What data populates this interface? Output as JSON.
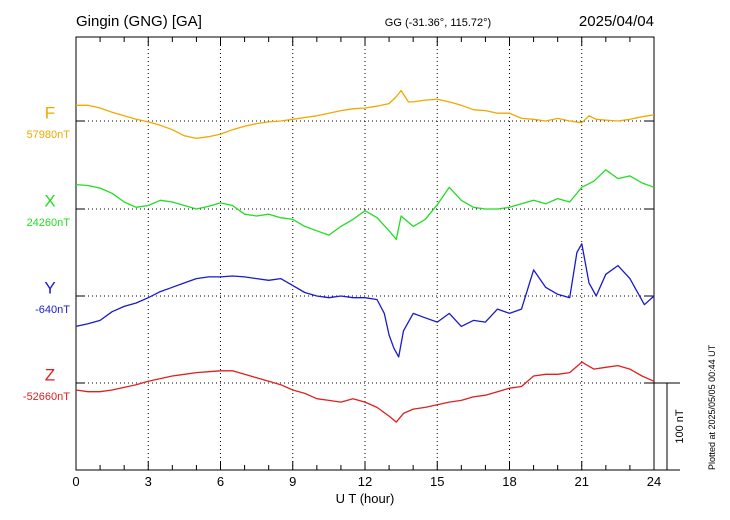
{
  "header": {
    "station": "Gingin (GNG)  [GA]",
    "coords": "GG (-31.36°, 115.72°)",
    "date": "2025/04/04"
  },
  "footer": {
    "plotted": "Plotted at 2025/05/05 00:44 UT"
  },
  "chart_data": {
    "type": "line",
    "xlabel": "U T (hour)",
    "x_ticks": [
      "0",
      "3",
      "6",
      "9",
      "12",
      "15",
      "18",
      "21",
      "24"
    ],
    "xlim": [
      0,
      24
    ],
    "scale_bar_label": "100 nT",
    "scale_bar_nT": 100,
    "grid": true,
    "series": [
      {
        "name": "F",
        "baseline_label": "57980nT",
        "baseline_nT": 57980,
        "color": "#f0a800",
        "x": [
          0,
          0.5,
          1,
          1.5,
          2,
          2.5,
          3,
          3.5,
          4,
          4.5,
          5,
          5.5,
          6,
          6.5,
          7,
          7.5,
          8,
          8.5,
          9,
          9.5,
          10,
          10.5,
          11,
          11.5,
          12,
          12.5,
          13,
          13.3,
          13.5,
          13.8,
          14,
          14.5,
          15,
          15.5,
          16,
          16.5,
          17,
          17.5,
          18,
          18.5,
          19,
          19.5,
          20,
          20.5,
          21,
          21.3,
          21.6,
          22,
          22.5,
          23,
          23.5,
          24
        ],
        "nT": [
          18,
          18,
          15,
          10,
          6,
          2,
          -1,
          -5,
          -10,
          -17,
          -20,
          -18,
          -15,
          -10,
          -6,
          -3,
          -1,
          0,
          2,
          4,
          6,
          9,
          12,
          14,
          15,
          17,
          20,
          28,
          35,
          22,
          22,
          24,
          25,
          22,
          18,
          13,
          12,
          9,
          9,
          3,
          2,
          0,
          3,
          0,
          -2,
          6,
          2,
          1,
          0,
          2,
          5,
          7
        ]
      },
      {
        "name": "X",
        "baseline_label": "24260nT",
        "baseline_nT": 24260,
        "color": "#22dd22",
        "x": [
          0,
          0.5,
          1,
          1.5,
          2,
          2.5,
          3,
          3.5,
          4,
          4.5,
          5,
          5.5,
          6,
          6.5,
          7,
          7.5,
          8,
          8.5,
          9,
          9.5,
          10,
          10.5,
          11,
          11.5,
          12,
          12.5,
          13,
          13.3,
          13.5,
          14,
          14.5,
          15,
          15.5,
          16,
          16.5,
          17,
          17.5,
          18,
          18.5,
          19,
          19.5,
          20,
          20.5,
          21,
          21.5,
          22,
          22.5,
          23,
          23.5,
          24
        ],
        "nT": [
          28,
          27,
          24,
          18,
          8,
          2,
          4,
          10,
          8,
          4,
          0,
          3,
          7,
          4,
          -6,
          -8,
          -6,
          -10,
          -12,
          -20,
          -25,
          -30,
          -20,
          -12,
          -2,
          -10,
          -25,
          -35,
          -8,
          -20,
          -12,
          5,
          25,
          10,
          2,
          0,
          0,
          2,
          6,
          10,
          6,
          12,
          8,
          25,
          32,
          45,
          35,
          38,
          30,
          25
        ]
      },
      {
        "name": "Y",
        "baseline_label": "-640nT",
        "baseline_nT": -640,
        "color": "#1a1acc",
        "x": [
          0,
          0.5,
          1,
          1.5,
          2,
          2.5,
          3,
          3.5,
          4,
          4.5,
          5,
          5.5,
          6,
          6.5,
          7,
          7.5,
          8,
          8.5,
          9,
          9.5,
          10,
          10.5,
          11,
          11.5,
          12,
          12.5,
          12.8,
          13,
          13.2,
          13.4,
          13.6,
          14,
          14.5,
          15,
          15.5,
          16,
          16.5,
          17,
          17.5,
          18,
          18.5,
          19,
          19.5,
          20,
          20.5,
          20.8,
          21,
          21.3,
          21.6,
          22,
          22.5,
          23,
          23.3,
          23.6,
          24
        ],
        "nT": [
          -35,
          -32,
          -28,
          -18,
          -12,
          -8,
          -2,
          5,
          10,
          15,
          20,
          22,
          22,
          23,
          22,
          20,
          18,
          20,
          12,
          4,
          0,
          -2,
          0,
          -2,
          -2,
          -4,
          -20,
          -45,
          -60,
          -70,
          -40,
          -20,
          -25,
          -30,
          -20,
          -35,
          -28,
          -30,
          -15,
          -20,
          -15,
          30,
          10,
          2,
          -2,
          50,
          60,
          15,
          0,
          25,
          35,
          20,
          5,
          -10,
          0
        ]
      },
      {
        "name": "Z",
        "baseline_label": "-52660nT",
        "baseline_nT": -52660,
        "color": "#dd2020",
        "x": [
          0,
          0.5,
          1,
          1.5,
          2,
          2.5,
          3,
          3.5,
          4,
          4.5,
          5,
          5.5,
          6,
          6.5,
          7,
          7.5,
          8,
          8.5,
          9,
          9.5,
          10,
          10.5,
          11,
          11.5,
          12,
          12.5,
          13,
          13.3,
          13.6,
          14,
          14.5,
          15,
          15.5,
          16,
          16.5,
          17,
          17.5,
          18,
          18.5,
          19,
          19.5,
          20,
          20.5,
          21,
          21.5,
          22,
          22.5,
          23,
          23.5,
          24
        ],
        "nT": [
          -8,
          -10,
          -10,
          -8,
          -5,
          -2,
          2,
          5,
          8,
          10,
          12,
          13,
          14,
          14,
          10,
          6,
          2,
          -2,
          -8,
          -12,
          -18,
          -20,
          -22,
          -18,
          -22,
          -28,
          -38,
          -45,
          -35,
          -30,
          -28,
          -25,
          -22,
          -20,
          -16,
          -14,
          -10,
          -6,
          -4,
          8,
          10,
          10,
          12,
          24,
          16,
          18,
          20,
          16,
          8,
          2
        ]
      }
    ]
  }
}
